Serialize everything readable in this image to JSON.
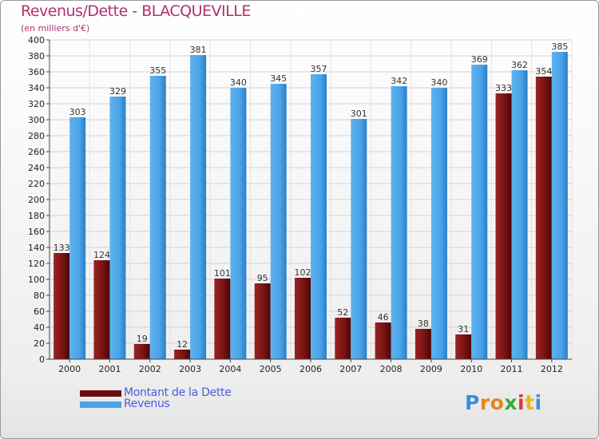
{
  "header": {
    "title": "Revenus/Dette - BLACQUEVILLE",
    "subtitle": "(en milliers d'€)"
  },
  "chart_data": {
    "type": "bar",
    "categories": [
      "2000",
      "2001",
      "2002",
      "2003",
      "2004",
      "2005",
      "2006",
      "2007",
      "2008",
      "2009",
      "2010",
      "2011",
      "2012"
    ],
    "series": [
      {
        "name": "Montant de la Dette",
        "color": "#7a1010",
        "values": [
          133,
          124,
          19,
          12,
          101,
          95,
          102,
          52,
          46,
          38,
          31,
          333,
          354
        ]
      },
      {
        "name": "Revenus",
        "color": "#4aa3e8",
        "values": [
          303,
          329,
          355,
          381,
          340,
          345,
          357,
          301,
          342,
          340,
          369,
          362,
          385
        ]
      }
    ],
    "ylim": [
      0,
      400
    ],
    "ytick_step": 20,
    "grid": true,
    "legend_position": "bottom-left"
  },
  "legend": {
    "items": [
      {
        "label": "Montant de la Dette",
        "color": "#6b0c0c"
      },
      {
        "label": "Revenus",
        "color": "#4aa3e8"
      }
    ]
  },
  "logo": {
    "letters": [
      "P",
      "r",
      "o",
      "x",
      "i",
      "t",
      "i"
    ],
    "colors": [
      "#3a8fd8",
      "#e8831e",
      "#e8831e",
      "#3aa83a",
      "#d83a3a",
      "#e8b81e",
      "#3a8fd8"
    ]
  }
}
